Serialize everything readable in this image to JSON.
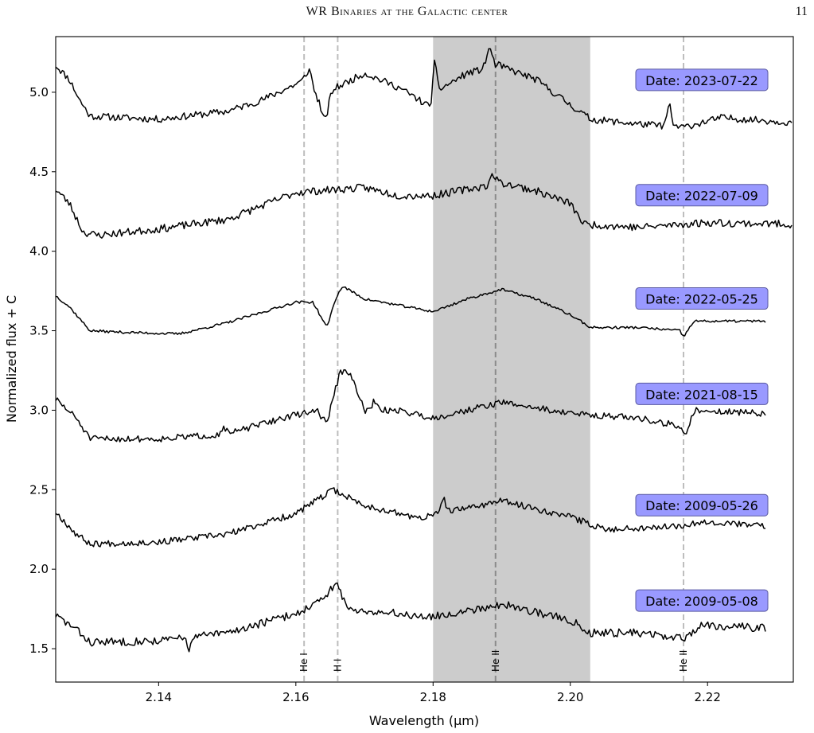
{
  "header": {
    "title": "WR Binaries at the Galactic center",
    "page_number": "11"
  },
  "chart_data": {
    "type": "line",
    "title": "",
    "xlabel": "Wavelength (μm)",
    "ylabel": "Normalized flux + C",
    "xlim": [
      2.125,
      2.2325
    ],
    "ylim": [
      1.29,
      5.35
    ],
    "xticks": [
      2.14,
      2.16,
      2.18,
      2.2,
      2.22
    ],
    "xtick_labels": [
      "2.14",
      "2.16",
      "2.18",
      "2.20",
      "2.22"
    ],
    "yticks": [
      1.5,
      2.0,
      2.5,
      3.0,
      3.5,
      4.0,
      4.5,
      5.0
    ],
    "ytick_labels": [
      "1.5",
      "2.0",
      "2.5",
      "3.0",
      "3.5",
      "4.0",
      "4.5",
      "5.0"
    ],
    "shaded_region": {
      "x0": 2.18,
      "x1": 2.2029,
      "color": "#cccccc"
    },
    "reference_lines": [
      {
        "x": 2.1612,
        "label": "He I",
        "dark": false
      },
      {
        "x": 2.1661,
        "label": "H I",
        "dark": false
      },
      {
        "x": 2.1891,
        "label": "He II",
        "dark": true
      },
      {
        "x": 2.2165,
        "label": "He II",
        "dark": false
      }
    ],
    "label_box_color": "#9999ff",
    "series": [
      {
        "name": "Date: 2023-07-22",
        "offset": 4.8,
        "x_end": 2.2325,
        "seed": 11,
        "noise": 0.022,
        "points": [
          [
            2.125,
            5.17
          ],
          [
            2.127,
            5.08
          ],
          [
            2.1285,
            4.95
          ],
          [
            2.13,
            4.85
          ],
          [
            2.14,
            4.83
          ],
          [
            2.15,
            4.88
          ],
          [
            2.155,
            4.95
          ],
          [
            2.16,
            5.05
          ],
          [
            2.1613,
            5.08
          ],
          [
            2.1638,
            4.92
          ],
          [
            2.1655,
            5.02
          ],
          [
            2.17,
            5.12
          ],
          [
            2.175,
            5.03
          ],
          [
            2.178,
            4.95
          ],
          [
            2.1798,
            4.9
          ],
          [
            2.1802,
            5.0
          ],
          [
            2.185,
            5.12
          ],
          [
            2.1895,
            5.17
          ],
          [
            2.195,
            5.08
          ],
          [
            2.2,
            4.92
          ],
          [
            2.203,
            4.83
          ],
          [
            2.21,
            4.8
          ],
          [
            2.2165,
            4.78
          ],
          [
            2.222,
            4.84
          ],
          [
            2.2325,
            4.81
          ]
        ],
        "features": [
          [
            2.162,
            0.1,
            0.0004
          ],
          [
            2.1643,
            -0.12,
            0.0004
          ],
          [
            2.1802,
            0.18,
            0.0003
          ],
          [
            2.1882,
            0.12,
            0.0004
          ],
          [
            2.2144,
            0.13,
            0.0003
          ]
        ]
      },
      {
        "name": "Date: 2022-07-09",
        "offset": 4.15,
        "x_end": 2.2325,
        "seed": 23,
        "noise": 0.024,
        "points": [
          [
            2.125,
            4.39
          ],
          [
            2.127,
            4.3
          ],
          [
            2.129,
            4.12
          ],
          [
            2.131,
            4.1
          ],
          [
            2.14,
            4.14
          ],
          [
            2.15,
            4.2
          ],
          [
            2.16,
            4.37
          ],
          [
            2.17,
            4.4
          ],
          [
            2.175,
            4.35
          ],
          [
            2.18,
            4.35
          ],
          [
            2.19,
            4.43
          ],
          [
            2.195,
            4.38
          ],
          [
            2.2,
            4.3
          ],
          [
            2.202,
            4.17
          ],
          [
            2.21,
            4.15
          ],
          [
            2.22,
            4.18
          ],
          [
            2.2325,
            4.17
          ]
        ],
        "features": [
          [
            2.1888,
            0.06,
            0.0004
          ]
        ]
      },
      {
        "name": "Date: 2022-05-25",
        "offset": 3.5,
        "x_end": 2.2285,
        "seed": 37,
        "noise": 0.008,
        "points": [
          [
            2.125,
            3.72
          ],
          [
            2.127,
            3.65
          ],
          [
            2.13,
            3.5
          ],
          [
            2.135,
            3.49
          ],
          [
            2.143,
            3.48
          ],
          [
            2.15,
            3.55
          ],
          [
            2.16,
            3.68
          ],
          [
            2.1625,
            3.68
          ],
          [
            2.1645,
            3.52
          ],
          [
            2.1658,
            3.7
          ],
          [
            2.1668,
            3.78
          ],
          [
            2.17,
            3.7
          ],
          [
            2.18,
            3.62
          ],
          [
            2.185,
            3.7
          ],
          [
            2.19,
            3.76
          ],
          [
            2.195,
            3.7
          ],
          [
            2.2,
            3.6
          ],
          [
            2.203,
            3.52
          ],
          [
            2.21,
            3.52
          ],
          [
            2.216,
            3.5
          ],
          [
            2.2165,
            3.46
          ],
          [
            2.218,
            3.56
          ],
          [
            2.2285,
            3.56
          ]
        ],
        "features": []
      },
      {
        "name": "Date: 2021-08-15",
        "offset": 2.9,
        "x_end": 2.2285,
        "seed": 51,
        "noise": 0.02,
        "points": [
          [
            2.125,
            3.07
          ],
          [
            2.128,
            2.95
          ],
          [
            2.13,
            2.82
          ],
          [
            2.14,
            2.82
          ],
          [
            2.15,
            2.85
          ],
          [
            2.158,
            2.95
          ],
          [
            2.163,
            3.0
          ],
          [
            2.1645,
            2.92
          ],
          [
            2.1665,
            3.25
          ],
          [
            2.168,
            3.22
          ],
          [
            2.17,
            3.0
          ],
          [
            2.175,
            3.0
          ],
          [
            2.18,
            2.95
          ],
          [
            2.19,
            3.05
          ],
          [
            2.2,
            2.98
          ],
          [
            2.21,
            2.95
          ],
          [
            2.216,
            2.9
          ],
          [
            2.2168,
            2.82
          ],
          [
            2.218,
            3.0
          ],
          [
            2.2285,
            2.98
          ]
        ],
        "features": [
          [
            2.1495,
            0.05,
            0.0003
          ],
          [
            2.1715,
            0.06,
            0.0003
          ]
        ]
      },
      {
        "name": "Date: 2009-05-26",
        "offset": 2.2,
        "x_end": 2.2285,
        "seed": 67,
        "noise": 0.02,
        "points": [
          [
            2.125,
            2.36
          ],
          [
            2.128,
            2.22
          ],
          [
            2.13,
            2.16
          ],
          [
            2.14,
            2.17
          ],
          [
            2.15,
            2.22
          ],
          [
            2.16,
            2.35
          ],
          [
            2.1655,
            2.5
          ],
          [
            2.17,
            2.4
          ],
          [
            2.178,
            2.32
          ],
          [
            2.181,
            2.35
          ],
          [
            2.19,
            2.43
          ],
          [
            2.2,
            2.33
          ],
          [
            2.205,
            2.25
          ],
          [
            2.215,
            2.27
          ],
          [
            2.22,
            2.3
          ],
          [
            2.2285,
            2.27
          ]
        ],
        "features": [
          [
            2.1815,
            0.1,
            0.0003
          ]
        ]
      },
      {
        "name": "Date: 2009-05-08",
        "offset": 1.6,
        "x_end": 2.2285,
        "seed": 83,
        "noise": 0.025,
        "points": [
          [
            2.125,
            1.71
          ],
          [
            2.128,
            1.62
          ],
          [
            2.13,
            1.54
          ],
          [
            2.14,
            1.55
          ],
          [
            2.15,
            1.6
          ],
          [
            2.16,
            1.72
          ],
          [
            2.1645,
            1.82
          ],
          [
            2.1658,
            1.93
          ],
          [
            2.1675,
            1.75
          ],
          [
            2.175,
            1.72
          ],
          [
            2.18,
            1.7
          ],
          [
            2.19,
            1.78
          ],
          [
            2.2,
            1.68
          ],
          [
            2.203,
            1.6
          ],
          [
            2.21,
            1.6
          ],
          [
            2.2165,
            1.56
          ],
          [
            2.219,
            1.65
          ],
          [
            2.2285,
            1.63
          ]
        ],
        "features": [
          [
            2.1445,
            -0.07,
            0.0003
          ]
        ]
      }
    ]
  }
}
